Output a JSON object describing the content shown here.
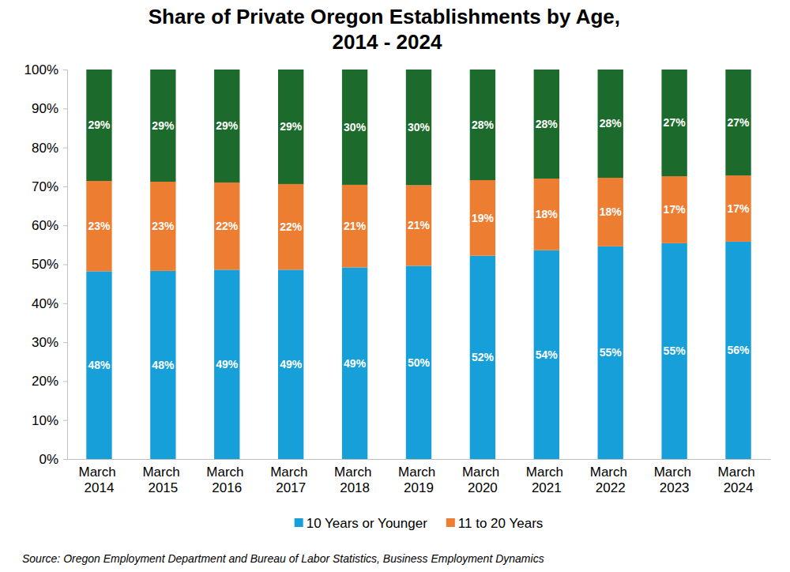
{
  "chart_data": {
    "type": "bar",
    "title": "Share of Private Oregon Establishments by Age, 2014 - 2024",
    "source": "Source: Oregon Employment Department and Bureau of Labor Statistics, Business Employment Dynamics",
    "categories": [
      "March 2014",
      "March 2015",
      "March 2016",
      "March 2017",
      "March 2018",
      "March 2019",
      "March 2020",
      "March 2021",
      "March 2022",
      "March 2023",
      "March 2024"
    ],
    "series": [
      {
        "name": "10 Years or Younger",
        "color": "#169fd8",
        "values": [
          48.2,
          48.3,
          48.6,
          48.6,
          49.2,
          49.6,
          52.2,
          53.6,
          54.6,
          55.4,
          55.8
        ],
        "value_labels": [
          "48%",
          "48%",
          "49%",
          "49%",
          "49%",
          "50%",
          "52%",
          "54%",
          "55%",
          "55%",
          "56%"
        ]
      },
      {
        "name": "11 to 20 Years",
        "color": "#ed7d31",
        "values": [
          23.2,
          22.9,
          22.4,
          22.0,
          21.2,
          20.7,
          19.4,
          18.4,
          17.6,
          17.2,
          17.0
        ],
        "value_labels": [
          "23%",
          "23%",
          "22%",
          "22%",
          "21%",
          "21%",
          "19%",
          "18%",
          "18%",
          "17%",
          "17%"
        ]
      },
      {
        "color": "#1d6b2c",
        "values": [
          28.6,
          28.8,
          29.0,
          29.4,
          29.6,
          29.7,
          28.4,
          28.0,
          27.8,
          27.4,
          27.2
        ],
        "value_labels": [
          "29%",
          "29%",
          "29%",
          "29%",
          "30%",
          "30%",
          "28%",
          "28%",
          "28%",
          "27%",
          "27%"
        ]
      }
    ],
    "stacked": true,
    "data_labels": true,
    "legend": "bottom",
    "grid": false,
    "ylim": [
      0,
      100
    ],
    "yticks": [
      {
        "value": 0,
        "label": "0%"
      },
      {
        "value": 10,
        "label": "10%"
      },
      {
        "value": 20,
        "label": "20%"
      },
      {
        "value": 30,
        "label": "30%"
      },
      {
        "value": 40,
        "label": "40%"
      },
      {
        "value": 50,
        "label": "50%"
      },
      {
        "value": 60,
        "label": "60%"
      },
      {
        "value": 70,
        "label": "70%"
      },
      {
        "value": 80,
        "label": "80%"
      },
      {
        "value": 90,
        "label": "90%"
      },
      {
        "value": 100,
        "label": "100%"
      }
    ]
  }
}
